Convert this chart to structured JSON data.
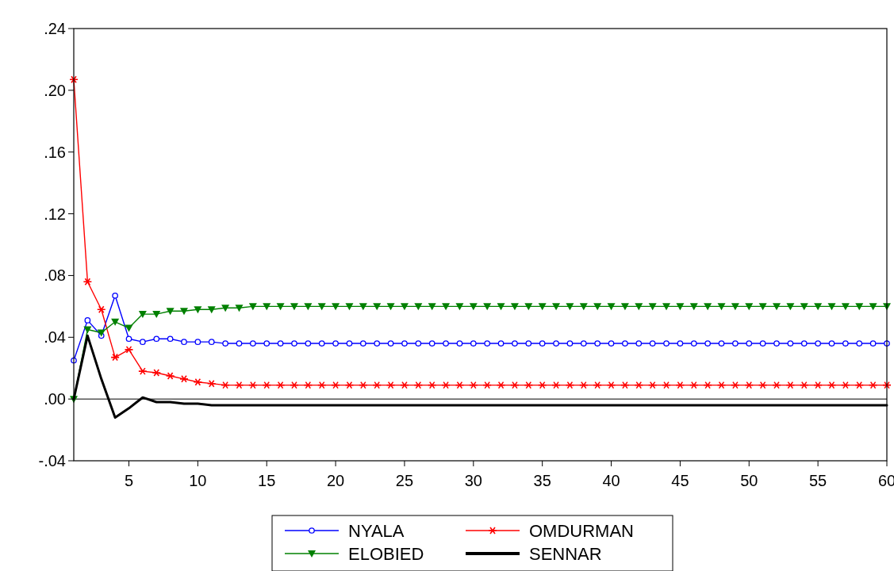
{
  "chart_data": {
    "type": "line",
    "x": [
      1,
      2,
      3,
      4,
      5,
      6,
      7,
      8,
      9,
      10,
      11,
      12,
      13,
      14,
      15,
      16,
      17,
      18,
      19,
      20,
      21,
      22,
      23,
      24,
      25,
      26,
      27,
      28,
      29,
      30,
      31,
      32,
      33,
      34,
      35,
      36,
      37,
      38,
      39,
      40,
      41,
      42,
      43,
      44,
      45,
      46,
      47,
      48,
      49,
      50,
      51,
      52,
      53,
      54,
      55,
      56,
      57,
      58,
      59,
      60
    ],
    "xlim": [
      1,
      60
    ],
    "xticks": [
      5,
      10,
      15,
      20,
      25,
      30,
      35,
      40,
      45,
      50,
      55,
      60
    ],
    "ylim": [
      -0.04,
      0.24
    ],
    "yticks": [
      {
        "value": -0.04,
        "label": "-.04"
      },
      {
        "value": 0,
        "label": ".00"
      },
      {
        "value": 0.04,
        "label": ".04"
      },
      {
        "value": 0.08,
        "label": ".08"
      },
      {
        "value": 0.12,
        "label": ".12"
      },
      {
        "value": 0.16,
        "label": ".16"
      },
      {
        "value": 0.2,
        "label": ".20"
      },
      {
        "value": 0.24,
        "label": ".24"
      }
    ],
    "grid": false,
    "legend": "bottom",
    "ref_lines": [
      {
        "axis": "y",
        "value": 0,
        "color": "#000000"
      }
    ],
    "series": [
      {
        "name": "NYALA",
        "color": "#0000ff",
        "marker": "circle",
        "values": [
          0.025,
          0.051,
          0.041,
          0.067,
          0.039,
          0.037,
          0.039,
          0.039,
          0.037,
          0.037,
          0.037,
          0.036,
          0.036,
          0.036,
          0.036,
          0.036,
          0.036,
          0.036,
          0.036,
          0.036,
          0.036,
          0.036,
          0.036,
          0.036,
          0.036,
          0.036,
          0.036,
          0.036,
          0.036,
          0.036,
          0.036,
          0.036,
          0.036,
          0.036,
          0.036,
          0.036,
          0.036,
          0.036,
          0.036,
          0.036,
          0.036,
          0.036,
          0.036,
          0.036,
          0.036,
          0.036,
          0.036,
          0.036,
          0.036,
          0.036,
          0.036,
          0.036,
          0.036,
          0.036,
          0.036,
          0.036,
          0.036,
          0.036,
          0.036,
          0.036
        ]
      },
      {
        "name": "OMDURMAN",
        "color": "#ff0000",
        "marker": "cross",
        "values": [
          0.207,
          0.076,
          0.058,
          0.027,
          0.032,
          0.018,
          0.017,
          0.015,
          0.013,
          0.011,
          0.01,
          0.009,
          0.009,
          0.009,
          0.009,
          0.009,
          0.009,
          0.009,
          0.009,
          0.009,
          0.009,
          0.009,
          0.009,
          0.009,
          0.009,
          0.009,
          0.009,
          0.009,
          0.009,
          0.009,
          0.009,
          0.009,
          0.009,
          0.009,
          0.009,
          0.009,
          0.009,
          0.009,
          0.009,
          0.009,
          0.009,
          0.009,
          0.009,
          0.009,
          0.009,
          0.009,
          0.009,
          0.009,
          0.009,
          0.009,
          0.009,
          0.009,
          0.009,
          0.009,
          0.009,
          0.009,
          0.009,
          0.009,
          0.009,
          0.009
        ]
      },
      {
        "name": "ELOBIED",
        "color": "#008000",
        "marker": "triangle",
        "values": [
          0,
          0.045,
          0.043,
          0.05,
          0.046,
          0.055,
          0.055,
          0.057,
          0.057,
          0.058,
          0.058,
          0.059,
          0.059,
          0.06,
          0.06,
          0.06,
          0.06,
          0.06,
          0.06,
          0.06,
          0.06,
          0.06,
          0.06,
          0.06,
          0.06,
          0.06,
          0.06,
          0.06,
          0.06,
          0.06,
          0.06,
          0.06,
          0.06,
          0.06,
          0.06,
          0.06,
          0.06,
          0.06,
          0.06,
          0.06,
          0.06,
          0.06,
          0.06,
          0.06,
          0.06,
          0.06,
          0.06,
          0.06,
          0.06,
          0.06,
          0.06,
          0.06,
          0.06,
          0.06,
          0.06,
          0.06,
          0.06,
          0.06,
          0.06,
          0.06
        ]
      },
      {
        "name": "SENNAR",
        "color": "#000000",
        "marker": "none",
        "values": [
          0,
          0.041,
          0.013,
          -0.012,
          -0.006,
          0.001,
          -0.002,
          -0.002,
          -0.003,
          -0.003,
          -0.004,
          -0.004,
          -0.004,
          -0.004,
          -0.004,
          -0.004,
          -0.004,
          -0.004,
          -0.004,
          -0.004,
          -0.004,
          -0.004,
          -0.004,
          -0.004,
          -0.004,
          -0.004,
          -0.004,
          -0.004,
          -0.004,
          -0.004,
          -0.004,
          -0.004,
          -0.004,
          -0.004,
          -0.004,
          -0.004,
          -0.004,
          -0.004,
          -0.004,
          -0.004,
          -0.004,
          -0.004,
          -0.004,
          -0.004,
          -0.004,
          -0.004,
          -0.004,
          -0.004,
          -0.004,
          -0.004,
          -0.004,
          -0.004,
          -0.004,
          -0.004,
          -0.004,
          -0.004,
          -0.004,
          -0.004,
          -0.004,
          -0.004
        ]
      }
    ]
  }
}
